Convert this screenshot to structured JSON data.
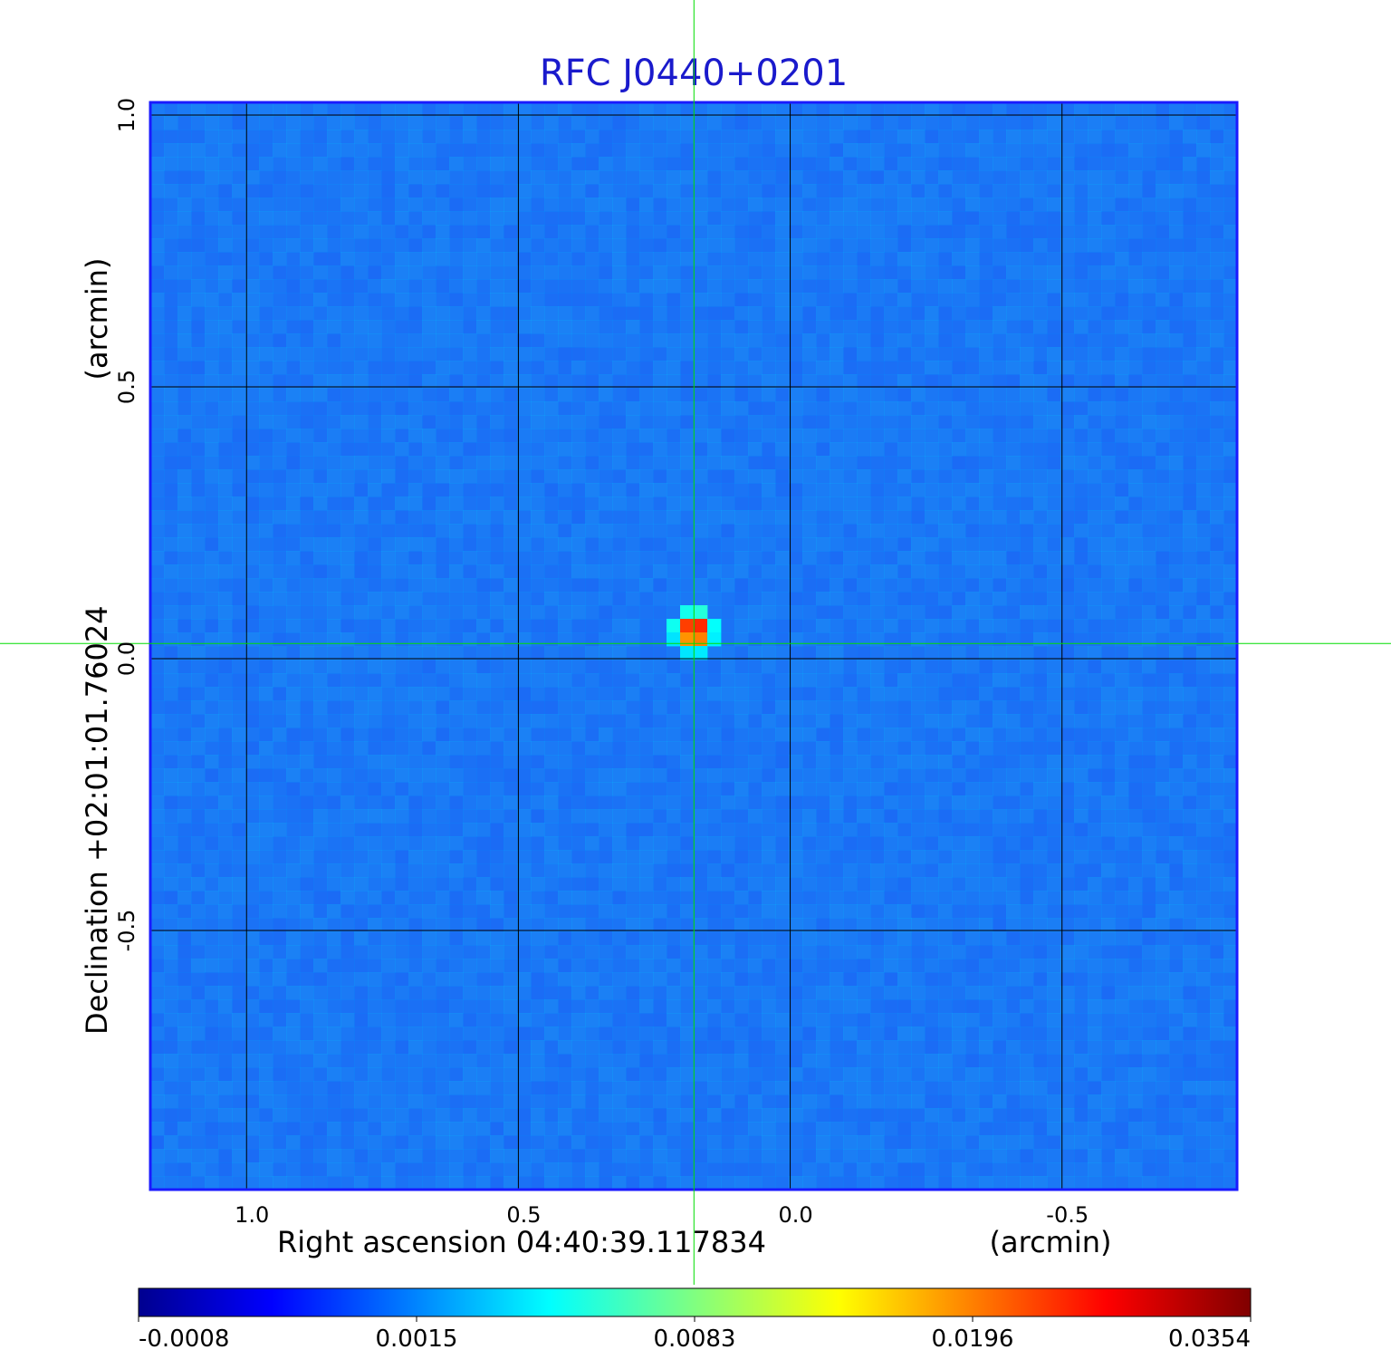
{
  "chart_data": {
    "type": "heatmap",
    "title": "RFC J0440+0201",
    "xlabel": "Right ascension  04:40:39.117834",
    "xunit": "(arcmin)",
    "ylabel": "Declination  +02:01:01.76024",
    "yunit": "(arcmin)",
    "x_ticks": [
      "1.0",
      "0.5",
      "0.0",
      "-0.5"
    ],
    "x_tick_values": [
      1.0,
      0.5,
      0.0,
      -0.5
    ],
    "y_ticks": [
      "1.0",
      "0.5",
      "0.0",
      "-0.5"
    ],
    "y_tick_values": [
      1.0,
      0.5,
      0.0,
      -0.5
    ],
    "xlim": [
      1.177,
      -0.822
    ],
    "ylim": [
      -1.0,
      1.0
    ],
    "grid": true,
    "crosshair": {
      "x": 0.177,
      "y": 0.028
    },
    "colormap": "jet",
    "colorbar_labels": [
      "-0.0008",
      "0.0015",
      "0.0083",
      "0.0196",
      "0.0354"
    ],
    "colorbar_values": [
      -0.0008,
      0.0015,
      0.0083,
      0.0196,
      0.0354
    ],
    "peak": {
      "x": 0.177,
      "y": 0.028,
      "value": 0.0354
    },
    "background_level": 0.001
  },
  "colors": {
    "title": "#1a1acc",
    "frame": "#1a1aff",
    "grid": "#000000",
    "crosshair": "#00dd00",
    "background": "#2a5ef0"
  }
}
